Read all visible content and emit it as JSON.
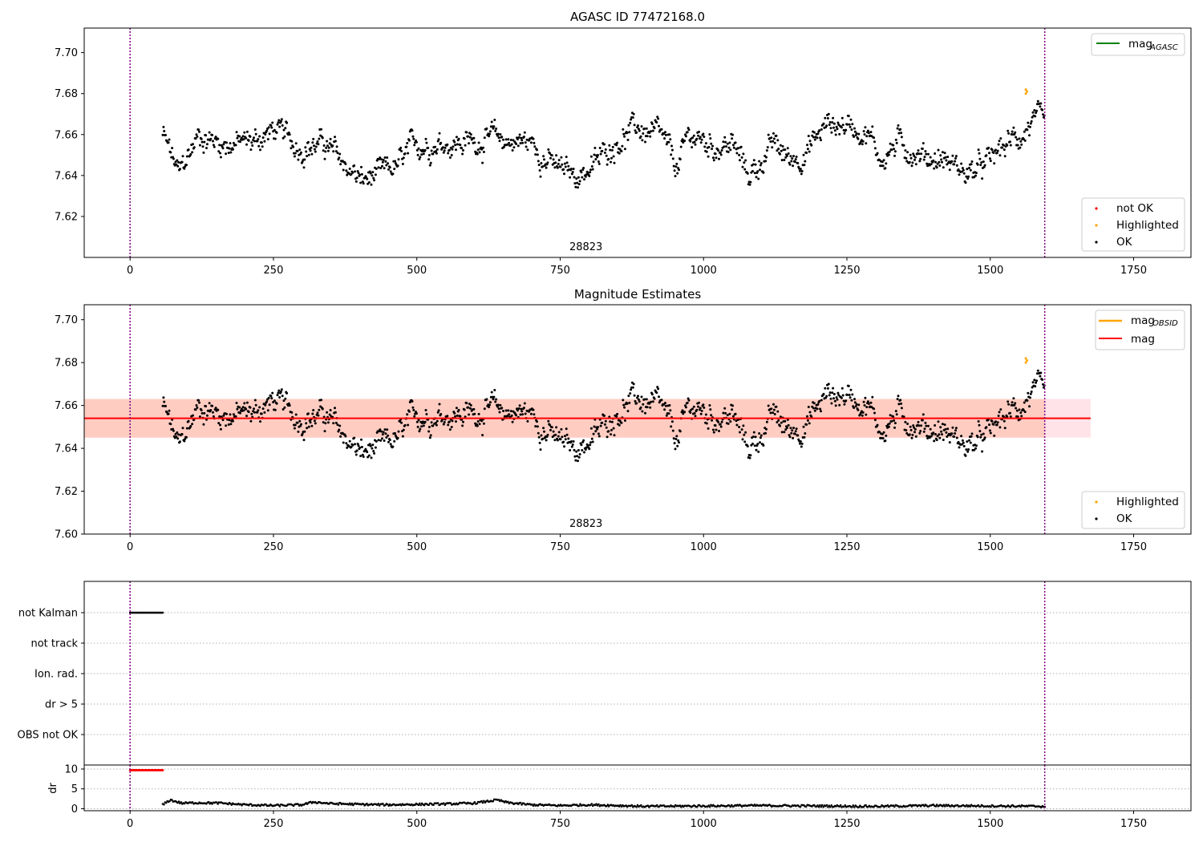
{
  "colors": {
    "ok": "#000000",
    "not_ok": "#ff0000",
    "highlighted": "#ffa500",
    "mag_agasc": "#008000",
    "mag_obsid": "#ffa500",
    "mag": "#ff0000",
    "band_outer": "#ffc0cb",
    "band_inner": "#ffa07a",
    "vline": "#800080",
    "grid": "#b0b0b0"
  },
  "chart_data": [
    {
      "id": "agasc",
      "type": "scatter",
      "title": "AGASC ID 77472168.0",
      "xlim": [
        -80,
        1850
      ],
      "ylim": [
        7.6,
        7.712
      ],
      "xticks": [
        0,
        250,
        500,
        750,
        1000,
        1250,
        1500,
        1750
      ],
      "yticks": [
        7.62,
        7.64,
        7.66,
        7.68,
        7.7
      ],
      "annotation": {
        "text": "28823",
        "x": 795
      },
      "vlines": [
        0,
        1595
      ],
      "legend_lines": [
        {
          "label_main": "mag",
          "label_sub": "AGASC",
          "color": "#008000"
        }
      ],
      "legend_points": [
        {
          "label": "not OK",
          "color": "#ff0000"
        },
        {
          "label": "Highlighted",
          "color": "#ffa500"
        },
        {
          "label": "OK",
          "color": "#000000"
        }
      ],
      "series": {
        "trend": {
          "x": [
            57,
            85,
            120,
            160,
            210,
            250,
            290,
            340,
            375,
            405,
            440,
            470,
            500,
            540,
            580,
            620,
            660,
            700,
            745,
            775,
            810,
            850,
            885,
            925,
            955,
            975,
            1010,
            1050,
            1080,
            1095,
            1120,
            1150,
            1180,
            1215,
            1250,
            1285,
            1310,
            1340,
            1380,
            1420,
            1460,
            1490,
            1520,
            1555,
            1575,
            1595
          ],
          "y": [
            7.66,
            7.64,
            7.66,
            7.656,
            7.656,
            7.662,
            7.655,
            7.655,
            7.645,
            7.637,
            7.64,
            7.645,
            7.655,
            7.657,
            7.656,
            7.658,
            7.657,
            7.656,
            7.643,
            7.64,
            7.645,
            7.658,
            7.663,
            7.658,
            7.643,
            7.66,
            7.655,
            7.655,
            7.64,
            7.645,
            7.655,
            7.648,
            7.652,
            7.665,
            7.665,
            7.662,
            7.648,
            7.656,
            7.65,
            7.648,
            7.641,
            7.644,
            7.653,
            7.66,
            7.667,
            7.662
          ]
        },
        "highlighted_points": [
          [
            1562,
            7.682
          ],
          [
            1562,
            7.68
          ],
          [
            1564,
            7.681
          ]
        ]
      }
    },
    {
      "id": "mag-estimates",
      "type": "scatter",
      "title": "Magnitude Estimates",
      "xlim": [
        -80,
        1850
      ],
      "ylim": [
        7.6,
        7.707
      ],
      "xticks": [
        0,
        250,
        500,
        750,
        1000,
        1250,
        1500,
        1750
      ],
      "yticks": [
        7.6,
        7.62,
        7.64,
        7.66,
        7.68,
        7.7
      ],
      "annotation": {
        "text": "28823",
        "x": 795
      },
      "vlines": [
        0,
        1595
      ],
      "mag_line": {
        "y": 7.654,
        "x": [
          -80,
          1675
        ]
      },
      "band_outer": {
        "y": [
          7.645,
          7.663
        ],
        "x": [
          -80,
          1675
        ]
      },
      "band_inner": {
        "y": [
          7.645,
          7.663
        ],
        "x": [
          -80,
          1595
        ]
      },
      "legend_lines": [
        {
          "label_main": "mag",
          "label_sub": "OBSID",
          "color": "#ffa500"
        },
        {
          "label_main": "mag",
          "label_sub": "",
          "color": "#ff0000"
        }
      ],
      "legend_points": [
        {
          "label": "Highlighted",
          "color": "#ffa500"
        },
        {
          "label": "OK",
          "color": "#000000"
        }
      ]
    },
    {
      "id": "flags",
      "type": "scatter",
      "xlim": [
        -80,
        1850
      ],
      "categories": [
        "not Kalman",
        "not track",
        "Ion. rad.",
        "dr > 5",
        "OBS not OK"
      ],
      "flag_segments": [
        {
          "category": "not Kalman",
          "x": [
            0,
            57
          ]
        }
      ],
      "vlines": [
        0,
        1595
      ]
    },
    {
      "id": "dr",
      "type": "scatter",
      "xlim": [
        -80,
        1850
      ],
      "ylim": [
        -0.5,
        11
      ],
      "ylabel": "dr",
      "yticks": [
        0,
        5,
        10
      ],
      "xticks": [
        0,
        250,
        500,
        750,
        1000,
        1250,
        1500,
        1750
      ],
      "red_segment": {
        "y": 9.7,
        "x": [
          0,
          57
        ]
      },
      "dr_trend": {
        "x": [
          57,
          70,
          90,
          120,
          160,
          200,
          250,
          300,
          320,
          350,
          400,
          450,
          500,
          550,
          600,
          640,
          660,
          700,
          750,
          800,
          900,
          1000,
          1100,
          1200,
          1300,
          1400,
          1500,
          1595
        ],
        "y": [
          1.0,
          2.2,
          1.4,
          1.5,
          1.4,
          1.0,
          0.8,
          1.0,
          1.7,
          1.3,
          1.1,
          1.0,
          1.1,
          1.2,
          1.4,
          2.2,
          1.5,
          1.0,
          0.8,
          1.0,
          0.6,
          0.7,
          0.8,
          0.7,
          0.6,
          0.8,
          0.7,
          0.6
        ]
      },
      "vlines": [
        0,
        1595
      ]
    }
  ]
}
